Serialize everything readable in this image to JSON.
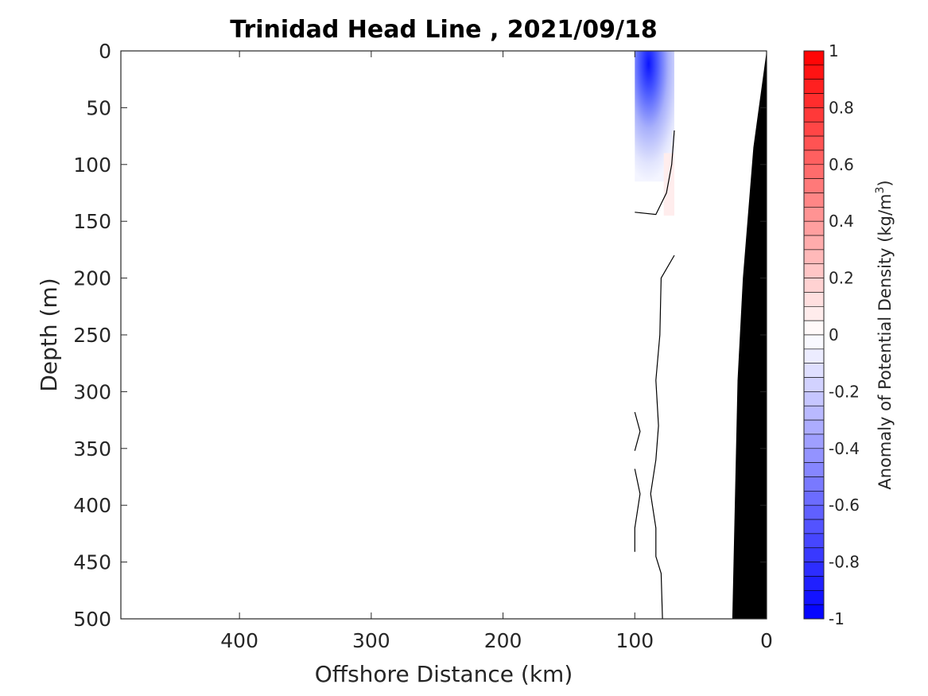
{
  "chart_data": {
    "type": "heatmap",
    "title": "Trinidad Head Line , 2021/09/18",
    "xlabel": "Offshore Distance (km)",
    "ylabel": "Depth (m)",
    "xlim": [
      490,
      0
    ],
    "ylim": [
      0,
      500
    ],
    "x_reversed": true,
    "y_reversed": true,
    "xticks": [
      400,
      300,
      200,
      100,
      0
    ],
    "yticks": [
      0,
      50,
      100,
      150,
      200,
      250,
      300,
      350,
      400,
      450,
      500
    ],
    "colorbar": {
      "label": "Anomaly of Potential Density (kg/m",
      "label_sup": "3",
      "label_end": ")",
      "clim": [
        -1,
        1
      ],
      "ticks": [
        1,
        0.8,
        0.6,
        0.4,
        0.2,
        0,
        -0.2,
        -0.4,
        -0.6,
        -0.8,
        -1
      ],
      "levels": 40,
      "colormap": "blue-white-red",
      "low_color": "#0000ff",
      "high_color": "#ff0000"
    },
    "anomaly_field": [
      {
        "x_range": [
          100,
          70
        ],
        "depth_range": [
          0,
          115
        ],
        "value": -0.9,
        "peak_at": [
          88,
          10
        ],
        "description": "negative"
      },
      {
        "x_range": [
          78,
          70
        ],
        "depth_range": [
          90,
          145
        ],
        "value": 0.08
      }
    ],
    "zero_contours": [
      [
        [
          70,
          70
        ],
        [
          72,
          100
        ],
        [
          76,
          125
        ],
        [
          84,
          144
        ],
        [
          100,
          142
        ]
      ],
      [
        [
          70,
          180
        ],
        [
          80,
          200
        ],
        [
          81,
          250
        ],
        [
          84,
          290
        ],
        [
          82,
          330
        ],
        [
          84,
          360
        ],
        [
          88,
          390
        ],
        [
          84,
          420
        ],
        [
          84,
          445
        ],
        [
          80,
          460
        ],
        [
          79,
          500
        ]
      ],
      [
        [
          100,
          318
        ],
        [
          96,
          335
        ],
        [
          100,
          352
        ]
      ],
      [
        [
          100,
          368
        ],
        [
          96,
          390
        ],
        [
          100,
          420
        ],
        [
          100,
          441
        ]
      ]
    ],
    "bathymetry": [
      [
        0,
        0
      ],
      [
        10,
        85
      ],
      [
        18,
        200
      ],
      [
        22,
        290
      ],
      [
        26,
        500
      ]
    ],
    "bathymetry_color": "#000000",
    "grid": false
  }
}
